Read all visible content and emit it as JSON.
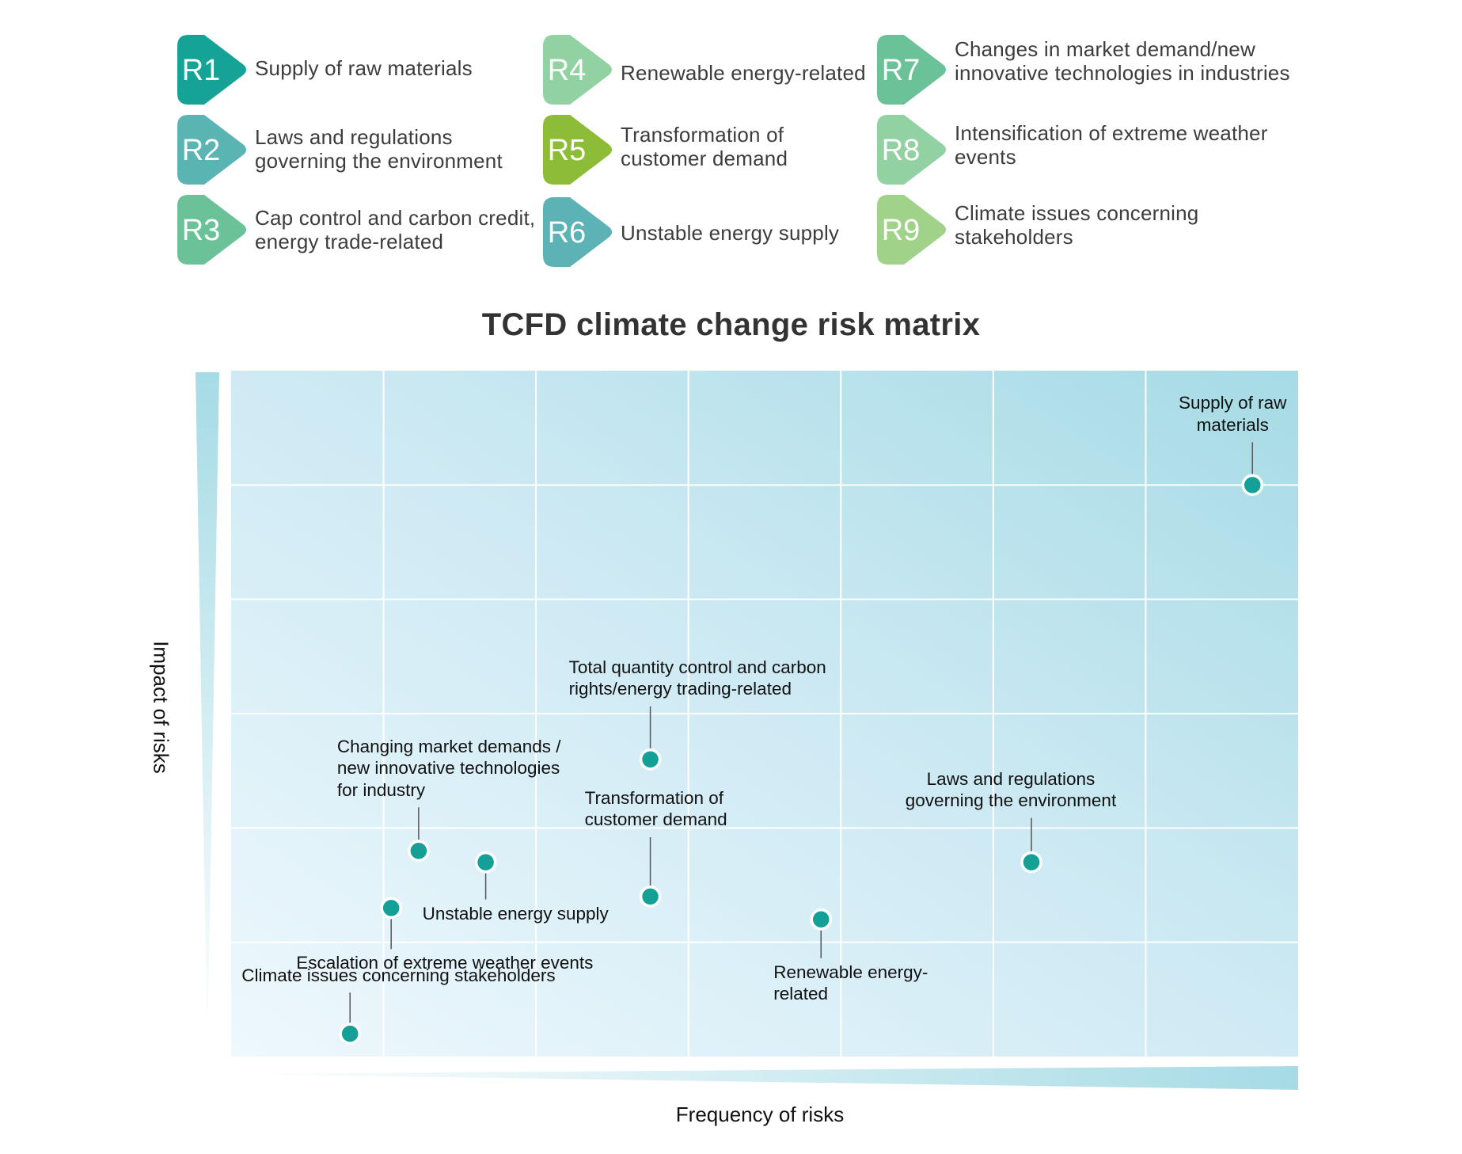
{
  "legend": [
    {
      "code": "R1",
      "label": "Supply of raw materials",
      "color": "#14a396"
    },
    {
      "code": "R2",
      "label": "Laws and regulations governing the environment",
      "color": "#5ab5b2"
    },
    {
      "code": "R3",
      "label": "Cap control and carbon credit, energy trade-related",
      "color": "#6cc298"
    },
    {
      "code": "R4",
      "label": "Renewable energy-related",
      "color": "#92d1a1"
    },
    {
      "code": "R5",
      "label": "Transformation of customer demand",
      "color": "#8dbd37"
    },
    {
      "code": "R6",
      "label": "Unstable energy supply",
      "color": "#5cb2b4"
    },
    {
      "code": "R7",
      "label": "Changes in market demand/new innovative technologies in industries",
      "color": "#6cc298"
    },
    {
      "code": "R8",
      "label": "Intensification of extreme weather events",
      "color": "#92d1a1"
    },
    {
      "code": "R9",
      "label": "Climate issues concerning stakeholders",
      "color": "#a1d28a"
    }
  ],
  "chart_data": {
    "type": "scatter",
    "title": "TCFD climate change risk matrix",
    "xlabel": "Frequency of risks",
    "ylabel": "Impact of risks",
    "xlim": [
      0,
      7
    ],
    "ylim": [
      0,
      6
    ],
    "grid": true,
    "point_color": "#14a096",
    "background_colors": [
      "#eef8fd",
      "#a6dbe5"
    ],
    "points": [
      {
        "label": "Supply of raw materials",
        "x": 6.7,
        "y": 5.0
      },
      {
        "label": "Total quantity control and carbon rights/energy trading-related",
        "x": 2.75,
        "y": 2.6
      },
      {
        "label": "Changing market demands / new innovative technologies for industry",
        "x": 1.23,
        "y": 1.8
      },
      {
        "label": "Unstable energy supply",
        "x": 1.67,
        "y": 1.7
      },
      {
        "label": "Transformation of customer demand",
        "x": 2.75,
        "y": 1.4
      },
      {
        "label": "Laws and regulations governing the environment",
        "x": 5.25,
        "y": 1.7
      },
      {
        "label": "Renewable energy-related",
        "x": 3.87,
        "y": 1.2
      },
      {
        "label": "Escalation of extreme weather events",
        "x": 1.05,
        "y": 1.3
      },
      {
        "label": "Climate issues concerning stakeholders",
        "x": 0.78,
        "y": 0.2
      }
    ]
  }
}
